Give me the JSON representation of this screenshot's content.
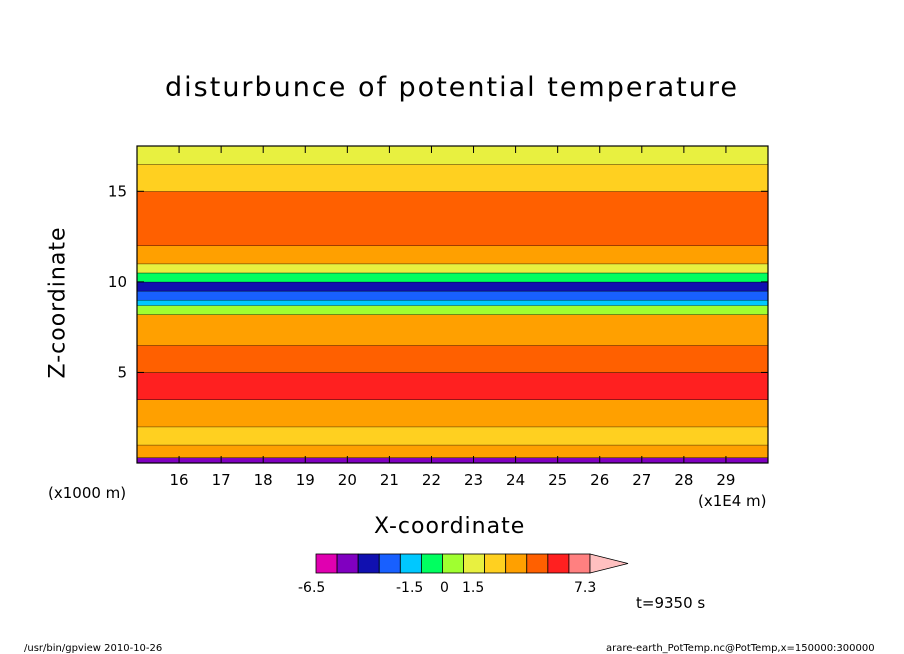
{
  "chart_data": {
    "type": "heatmap",
    "title": "disturbunce of potential temperature",
    "xlabel": "X-coordinate",
    "ylabel": "Z-coordinate",
    "x_unit_left": "(x1000 m)",
    "x_unit_right": "(x1E4 m)",
    "x_ticks": [
      "16",
      "17",
      "18",
      "19",
      "20",
      "21",
      "22",
      "23",
      "24",
      "25",
      "26",
      "27",
      "28",
      "29"
    ],
    "y_ticks": [
      "5",
      "10",
      "15"
    ],
    "xlim": [
      15.0,
      30.0
    ],
    "ylim": [
      0.0,
      17.5
    ],
    "colorbar": {
      "labels": [
        "-6.5",
        "-1.5",
        "0",
        "1.5",
        "7.3"
      ],
      "colors": [
        "#e000b0",
        "#8000c0",
        "#1010b0",
        "#1860ff",
        "#00c8ff",
        "#00ff60",
        "#a0ff30",
        "#e8f040",
        "#ffd020",
        "#ffa000",
        "#ff6000",
        "#ff2020",
        "#ff8080",
        "#ffc0c0"
      ]
    },
    "bands": [
      {
        "z": 0.3,
        "color": "#8000c0"
      },
      {
        "z": 1.0,
        "color": "#ffa000"
      },
      {
        "z": 2.0,
        "color": "#ffd020"
      },
      {
        "z": 3.5,
        "color": "#ffa000"
      },
      {
        "z": 5.0,
        "color": "#ff2020"
      },
      {
        "z": 6.5,
        "color": "#ff6000"
      },
      {
        "z": 8.2,
        "color": "#ffa000"
      },
      {
        "z": 8.7,
        "color": "#a0ff30"
      },
      {
        "z": 9.0,
        "color": "#00c8ff"
      },
      {
        "z": 9.5,
        "color": "#1860ff"
      },
      {
        "z": 10.0,
        "color": "#1010b0"
      },
      {
        "z": 10.5,
        "color": "#00ff60"
      },
      {
        "z": 11.0,
        "color": "#e8f040"
      },
      {
        "z": 12.0,
        "color": "#ffa000"
      },
      {
        "z": 15.0,
        "color": "#ff6000"
      },
      {
        "z": 16.5,
        "color": "#ffd020"
      },
      {
        "z": 17.5,
        "color": "#e8f040"
      }
    ],
    "time_label": "t=9350 s"
  },
  "footer": {
    "left": "/usr/bin/gpview   2010-10-26",
    "right": "arare-earth_PotTemp.nc@PotTemp,x=150000:300000"
  }
}
